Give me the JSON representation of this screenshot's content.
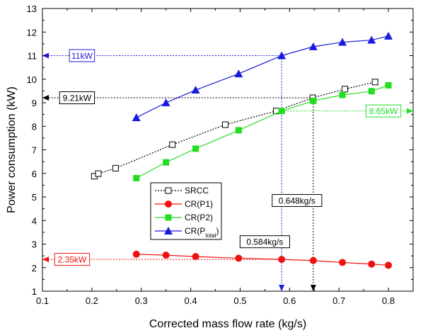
{
  "chart_data": {
    "type": "line",
    "title": "",
    "xlabel": "Corrected mass flow rate (kg/s)",
    "ylabel": "Power consumption (kW)",
    "xlim": [
      0.1,
      0.85
    ],
    "ylim": [
      1,
      13
    ],
    "xticks": [
      0.1,
      0.2,
      0.3,
      0.4,
      0.5,
      0.6,
      0.7,
      0.8
    ],
    "yticks": [
      1,
      2,
      3,
      4,
      5,
      6,
      7,
      8,
      9,
      10,
      11,
      12,
      13
    ],
    "grid": false,
    "legend_position": "lower-left",
    "series": [
      {
        "name": "SRCC",
        "legend_parts": [
          {
            "text": "SRCC",
            "sub": false
          }
        ],
        "color": "#000000",
        "line_style": "dotted",
        "marker": "open-square",
        "x": [
          0.205,
          0.213,
          0.248,
          0.363,
          0.47,
          0.573,
          0.647,
          0.712,
          0.773
        ],
        "y": [
          5.88,
          5.99,
          6.22,
          7.22,
          8.07,
          8.65,
          9.21,
          9.58,
          9.88
        ]
      },
      {
        "name": "CR(P1)",
        "legend_parts": [
          {
            "text": "CR(P1)",
            "sub": false
          }
        ],
        "color": "#ee1111",
        "line_style": "solid",
        "marker": "filled-circle",
        "x": [
          0.29,
          0.35,
          0.41,
          0.497,
          0.584,
          0.648,
          0.707,
          0.766,
          0.8
        ],
        "y": [
          2.57,
          2.53,
          2.47,
          2.4,
          2.35,
          2.3,
          2.22,
          2.15,
          2.1
        ]
      },
      {
        "name": "CR(P2)",
        "legend_parts": [
          {
            "text": "CR(P2)",
            "sub": false
          }
        ],
        "color": "#22dd22",
        "line_style": "solid",
        "marker": "filled-square",
        "x": [
          0.29,
          0.35,
          0.41,
          0.497,
          0.584,
          0.648,
          0.707,
          0.766,
          0.8
        ],
        "y": [
          5.8,
          6.47,
          7.05,
          7.83,
          8.65,
          9.08,
          9.33,
          9.49,
          9.74
        ]
      },
      {
        "name": "CR(Ptotal)",
        "legend_parts": [
          {
            "text": "CR(P",
            "sub": false
          },
          {
            "text": "total",
            "sub": true
          },
          {
            "text": ")",
            "sub": false
          }
        ],
        "color": "#1a1add",
        "line_style": "solid",
        "marker": "filled-triangle",
        "x": [
          0.29,
          0.35,
          0.41,
          0.497,
          0.584,
          0.648,
          0.707,
          0.766,
          0.8
        ],
        "y": [
          8.37,
          9.0,
          9.54,
          10.23,
          11.0,
          11.38,
          11.57,
          11.66,
          11.83
        ]
      }
    ],
    "annotations": [
      {
        "text": "11kW",
        "color": "#1a1add",
        "from_x": 0.584,
        "to_x": 0.1,
        "y": 11.0,
        "label_x": 0.18,
        "arrow": "left"
      },
      {
        "text": "9.21kW",
        "color": "#000000",
        "from_x": 0.648,
        "to_x": 0.1,
        "y": 9.21,
        "label_x": 0.17,
        "arrow": "left"
      },
      {
        "text": "8.65kW",
        "color": "#22dd22",
        "from_x": 0.584,
        "to_x": 0.85,
        "y": 8.65,
        "label_x": 0.79,
        "arrow": "right"
      },
      {
        "text": "2.35kW",
        "color": "#ee1111",
        "from_x": 0.584,
        "to_x": 0.1,
        "y": 2.35,
        "label_x": 0.16,
        "arrow": "left"
      },
      {
        "text": "0.584kg/s",
        "color": "#1a1add",
        "label_color": "#000000",
        "x": 0.584,
        "from_y": 11.0,
        "to_y": 1.0,
        "label_y": 3.1,
        "label_x": 0.55,
        "arrow": "down"
      },
      {
        "text": "0.648kg/s",
        "color": "#000000",
        "label_color": "#000000",
        "x": 0.648,
        "from_y": 9.21,
        "to_y": 1.0,
        "label_y": 4.85,
        "label_x": 0.615,
        "arrow": "down"
      }
    ]
  }
}
